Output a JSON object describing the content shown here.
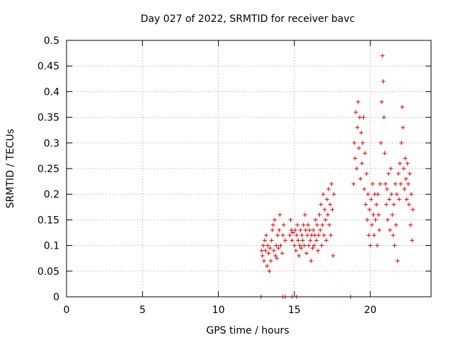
{
  "chart_data": {
    "type": "scatter",
    "title": "Day 027 of 2022, SRMTID for receiver bavc",
    "xlabel": "GPS time / hours",
    "ylabel": "SRMTID / TECUs",
    "xlim": [
      0,
      24
    ],
    "ylim": [
      0,
      0.5
    ],
    "grid": true,
    "marker": "+",
    "series_color": "#e00000",
    "x_ticks": [
      0,
      5,
      10,
      15,
      20
    ],
    "x_tick_labels": [
      "0",
      "5",
      "10",
      "15",
      "20"
    ],
    "y_ticks": [
      0,
      0.05,
      0.1,
      0.15,
      0.2,
      0.25,
      0.3,
      0.35,
      0.4,
      0.45,
      0.5
    ],
    "y_tick_labels": [
      "0",
      "0.05",
      "0.1",
      "0.15",
      "0.2",
      "0.25",
      "0.3",
      "0.35",
      "0.4",
      "0.45",
      "0.5"
    ],
    "series": [
      {
        "name": "SRMTID",
        "points": [
          [
            12.85,
            0.09
          ],
          [
            12.9,
            0.08
          ],
          [
            12.95,
            0.1
          ],
          [
            13.0,
            0.07
          ],
          [
            13.05,
            0.11
          ],
          [
            13.1,
            0.09
          ],
          [
            13.15,
            0.12
          ],
          [
            13.2,
            0.06
          ],
          [
            13.25,
            0.1
          ],
          [
            13.3,
            0.085
          ],
          [
            13.35,
            0.05
          ],
          [
            13.4,
            0.095
          ],
          [
            13.45,
            0.07
          ],
          [
            13.5,
            0.11
          ],
          [
            13.55,
            0.13
          ],
          [
            13.6,
            0.14
          ],
          [
            13.65,
            0.09
          ],
          [
            13.7,
            0.15
          ],
          [
            13.75,
            0.08
          ],
          [
            13.8,
            0.1
          ],
          [
            13.85,
            0.075
          ],
          [
            13.9,
            0.12
          ],
          [
            13.95,
            0.095
          ],
          [
            14.0,
            0.13
          ],
          [
            14.05,
            0.16
          ],
          [
            14.1,
            0.1
          ],
          [
            14.2,
            0.085
          ],
          [
            14.25,
            0.12
          ],
          [
            14.3,
            0.14
          ],
          [
            14.4,
            0.11
          ],
          [
            14.7,
            0.12
          ],
          [
            14.75,
            0.15
          ],
          [
            14.8,
            0.13
          ],
          [
            14.85,
            0.11
          ],
          [
            14.9,
            0.125
          ],
          [
            15.0,
            0.1
          ],
          [
            15.05,
            0.13
          ],
          [
            15.1,
            0.09
          ],
          [
            15.15,
            0.12
          ],
          [
            15.2,
            0.14
          ],
          [
            15.25,
            0.11
          ],
          [
            15.3,
            0.08
          ],
          [
            15.35,
            0.1
          ],
          [
            15.4,
            0.13
          ],
          [
            15.45,
            0.095
          ],
          [
            15.5,
            0.12
          ],
          [
            15.55,
            0.11
          ],
          [
            15.6,
            0.14
          ],
          [
            15.65,
            0.1
          ],
          [
            15.7,
            0.16
          ],
          [
            15.75,
            0.13
          ],
          [
            15.8,
            0.085
          ],
          [
            15.85,
            0.12
          ],
          [
            15.9,
            0.14
          ],
          [
            15.95,
            0.1
          ],
          [
            16.0,
            0.13
          ],
          [
            16.05,
            0.11
          ],
          [
            16.1,
            0.07
          ],
          [
            16.15,
            0.12
          ],
          [
            16.2,
            0.095
          ],
          [
            16.25,
            0.13
          ],
          [
            16.3,
            0.1
          ],
          [
            16.35,
            0.12
          ],
          [
            16.4,
            0.15
          ],
          [
            16.45,
            0.11
          ],
          [
            16.5,
            0.14
          ],
          [
            16.55,
            0.09
          ],
          [
            16.6,
            0.12
          ],
          [
            16.65,
            0.16
          ],
          [
            16.7,
            0.13
          ],
          [
            16.75,
            0.18
          ],
          [
            16.8,
            0.1
          ],
          [
            16.85,
            0.14
          ],
          [
            16.9,
            0.2
          ],
          [
            16.95,
            0.12
          ],
          [
            17.0,
            0.17
          ],
          [
            17.05,
            0.15
          ],
          [
            17.1,
            0.11
          ],
          [
            17.15,
            0.19
          ],
          [
            17.2,
            0.16
          ],
          [
            17.25,
            0.21
          ],
          [
            17.3,
            0.14
          ],
          [
            17.35,
            0.18
          ],
          [
            17.4,
            0.12
          ],
          [
            17.45,
            0.22
          ],
          [
            17.5,
            0.17
          ],
          [
            17.55,
            0.08
          ],
          [
            17.6,
            0.2
          ],
          [
            18.9,
            0.22
          ],
          [
            18.95,
            0.3
          ],
          [
            19.0,
            0.27
          ],
          [
            19.05,
            0.36
          ],
          [
            19.1,
            0.25
          ],
          [
            19.15,
            0.33
          ],
          [
            19.2,
            0.38
          ],
          [
            19.25,
            0.29
          ],
          [
            19.3,
            0.35
          ],
          [
            19.35,
            0.23
          ],
          [
            19.4,
            0.32
          ],
          [
            19.45,
            0.26
          ],
          [
            19.5,
            0.3
          ],
          [
            19.55,
            0.35
          ],
          [
            19.6,
            0.21
          ],
          [
            19.65,
            0.28
          ],
          [
            19.7,
            0.18
          ],
          [
            19.75,
            0.24
          ],
          [
            19.8,
            0.15
          ],
          [
            19.85,
            0.2
          ],
          [
            19.9,
            0.12
          ],
          [
            19.95,
            0.17
          ],
          [
            20.0,
            0.1
          ],
          [
            20.05,
            0.19
          ],
          [
            20.1,
            0.14
          ],
          [
            20.15,
            0.22
          ],
          [
            20.2,
            0.16
          ],
          [
            20.25,
            0.12
          ],
          [
            20.3,
            0.2
          ],
          [
            20.35,
            0.15
          ],
          [
            20.4,
            0.18
          ],
          [
            20.45,
            0.1
          ],
          [
            20.5,
            0.2
          ],
          [
            20.55,
            0.16
          ],
          [
            20.6,
            0.13
          ],
          [
            20.65,
            0.22
          ],
          [
            20.7,
            0.3
          ],
          [
            20.75,
            0.38
          ],
          [
            20.8,
            0.47
          ],
          [
            20.85,
            0.42
          ],
          [
            20.9,
            0.35
          ],
          [
            20.95,
            0.28
          ],
          [
            21.0,
            0.22
          ],
          [
            21.05,
            0.18
          ],
          [
            21.1,
            0.21
          ],
          [
            21.15,
            0.15
          ],
          [
            21.2,
            0.24
          ],
          [
            21.25,
            0.19
          ],
          [
            21.3,
            0.13
          ],
          [
            21.35,
            0.25
          ],
          [
            21.4,
            0.2
          ],
          [
            21.45,
            0.16
          ],
          [
            21.5,
            0.12
          ],
          [
            21.55,
            0.18
          ],
          [
            21.6,
            0.1
          ],
          [
            21.65,
            0.22
          ],
          [
            21.7,
            0.14
          ],
          [
            21.75,
            0.2
          ],
          [
            21.8,
            0.07
          ],
          [
            21.85,
            0.24
          ],
          [
            21.9,
            0.19
          ],
          [
            21.95,
            0.26
          ],
          [
            22.0,
            0.22
          ],
          [
            22.05,
            0.3
          ],
          [
            22.1,
            0.37
          ],
          [
            22.15,
            0.33
          ],
          [
            22.2,
            0.25
          ],
          [
            22.25,
            0.21
          ],
          [
            22.3,
            0.27
          ],
          [
            22.35,
            0.23
          ],
          [
            22.4,
            0.19
          ],
          [
            22.45,
            0.26
          ],
          [
            22.5,
            0.22
          ],
          [
            22.55,
            0.18
          ],
          [
            22.6,
            0.24
          ],
          [
            22.65,
            0.14
          ],
          [
            22.7,
            0.2
          ],
          [
            22.75,
            0.11
          ],
          [
            22.8,
            0.17
          ],
          [
            12.8,
            0.0
          ],
          [
            14.25,
            0.0
          ],
          [
            14.4,
            0.0
          ],
          [
            14.85,
            0.0
          ],
          [
            15.15,
            0.0
          ],
          [
            18.7,
            0.0
          ]
        ]
      }
    ]
  }
}
